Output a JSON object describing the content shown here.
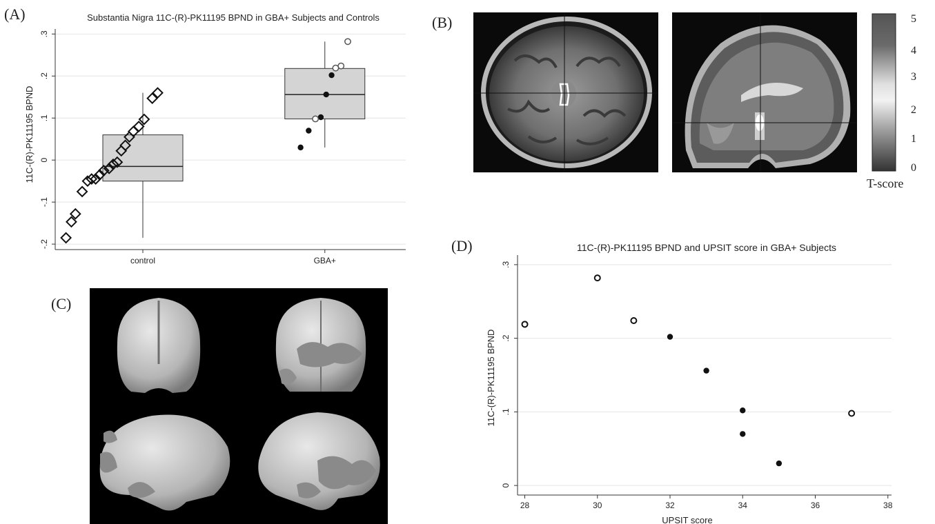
{
  "panels": {
    "A": {
      "letter": "(A)"
    },
    "B": {
      "letter": "(B)"
    },
    "C": {
      "letter": "(C)"
    },
    "D": {
      "letter": "(D)"
    }
  },
  "colorbar": {
    "ticks": [
      "5",
      "4",
      "3",
      "2",
      "1",
      "0"
    ],
    "label": "T-score"
  },
  "chart_data": [
    {
      "type": "scatter",
      "subtype": "box-with-points",
      "title": "Substantia Nigra 11C-(R)-PK11195 BPND in GBA+ Subjects and Controls",
      "xlabel": "",
      "ylabel": "11C-(R)-PK11195 BPND",
      "categories": [
        "control",
        "GBA+"
      ],
      "ylim": [
        -0.2,
        0.3
      ],
      "yticks": [
        -0.2,
        -0.1,
        0,
        0.1,
        0.2,
        0.3
      ],
      "ytick_labels": [
        "-.2",
        "-.1",
        "0",
        ".1",
        ".2",
        ".3"
      ],
      "grid": true,
      "boxes": [
        {
          "category": "control",
          "min": -0.185,
          "q1": -0.05,
          "median": -0.015,
          "q3": 0.06,
          "max": 0.16
        },
        {
          "category": "GBA+",
          "min": 0.03,
          "q1": 0.098,
          "median": 0.156,
          "q3": 0.218,
          "max": 0.282
        }
      ],
      "series": [
        {
          "marker": "diamond-open",
          "category": "control",
          "points": [
            {
              "x": 0.08,
              "y": -0.185
            },
            {
              "x": 0.12,
              "y": -0.147
            },
            {
              "x": 0.15,
              "y": -0.128
            },
            {
              "x": 0.2,
              "y": -0.075
            },
            {
              "x": 0.24,
              "y": -0.05
            },
            {
              "x": 0.27,
              "y": -0.045
            },
            {
              "x": 0.3,
              "y": -0.045
            },
            {
              "x": 0.33,
              "y": -0.035
            },
            {
              "x": 0.36,
              "y": -0.025
            },
            {
              "x": 0.4,
              "y": -0.02
            },
            {
              "x": 0.43,
              "y": -0.01
            },
            {
              "x": 0.46,
              "y": -0.005
            },
            {
              "x": 0.49,
              "y": 0.022
            },
            {
              "x": 0.52,
              "y": 0.035
            },
            {
              "x": 0.55,
              "y": 0.055
            },
            {
              "x": 0.58,
              "y": 0.068
            },
            {
              "x": 0.62,
              "y": 0.08
            },
            {
              "x": 0.66,
              "y": 0.097
            },
            {
              "x": 0.72,
              "y": 0.147
            },
            {
              "x": 0.76,
              "y": 0.16
            }
          ]
        },
        {
          "marker": "filled-circle",
          "category": "GBA+",
          "points": [
            {
              "x": 1.82,
              "y": 0.03
            },
            {
              "x": 1.88,
              "y": 0.07
            },
            {
              "x": 1.97,
              "y": 0.102
            },
            {
              "x": 2.01,
              "y": 0.156
            },
            {
              "x": 2.05,
              "y": 0.202
            }
          ]
        },
        {
          "marker": "open-circle",
          "category": "GBA+",
          "points": [
            {
              "x": 1.93,
              "y": 0.098
            },
            {
              "x": 2.08,
              "y": 0.219
            },
            {
              "x": 2.12,
              "y": 0.224
            },
            {
              "x": 2.17,
              "y": 0.282
            }
          ]
        }
      ]
    },
    {
      "type": "scatter",
      "title": "11C-(R)-PK11195 BPND and UPSIT score in GBA+ Subjects",
      "xlabel": "UPSIT score",
      "ylabel": "11C-(R)-PK11195  BPND",
      "xlim": [
        28,
        38
      ],
      "ylim": [
        0,
        0.3
      ],
      "xticks": [
        28,
        30,
        32,
        34,
        36,
        38
      ],
      "xtick_labels": [
        "28",
        "30",
        "32",
        "34",
        "36",
        "38"
      ],
      "yticks": [
        0,
        0.1,
        0.2,
        0.3
      ],
      "ytick_labels": [
        "0",
        ".1",
        ".2",
        ".3"
      ],
      "grid": true,
      "series": [
        {
          "marker": "open-circle",
          "points": [
            {
              "x": 28,
              "y": 0.219
            },
            {
              "x": 30,
              "y": 0.282
            },
            {
              "x": 31,
              "y": 0.224
            },
            {
              "x": 37,
              "y": 0.098
            }
          ]
        },
        {
          "marker": "filled-circle",
          "points": [
            {
              "x": 32,
              "y": 0.202
            },
            {
              "x": 33,
              "y": 0.156
            },
            {
              "x": 34,
              "y": 0.102
            },
            {
              "x": 34,
              "y": 0.07
            },
            {
              "x": 35,
              "y": 0.03
            }
          ]
        }
      ]
    }
  ]
}
